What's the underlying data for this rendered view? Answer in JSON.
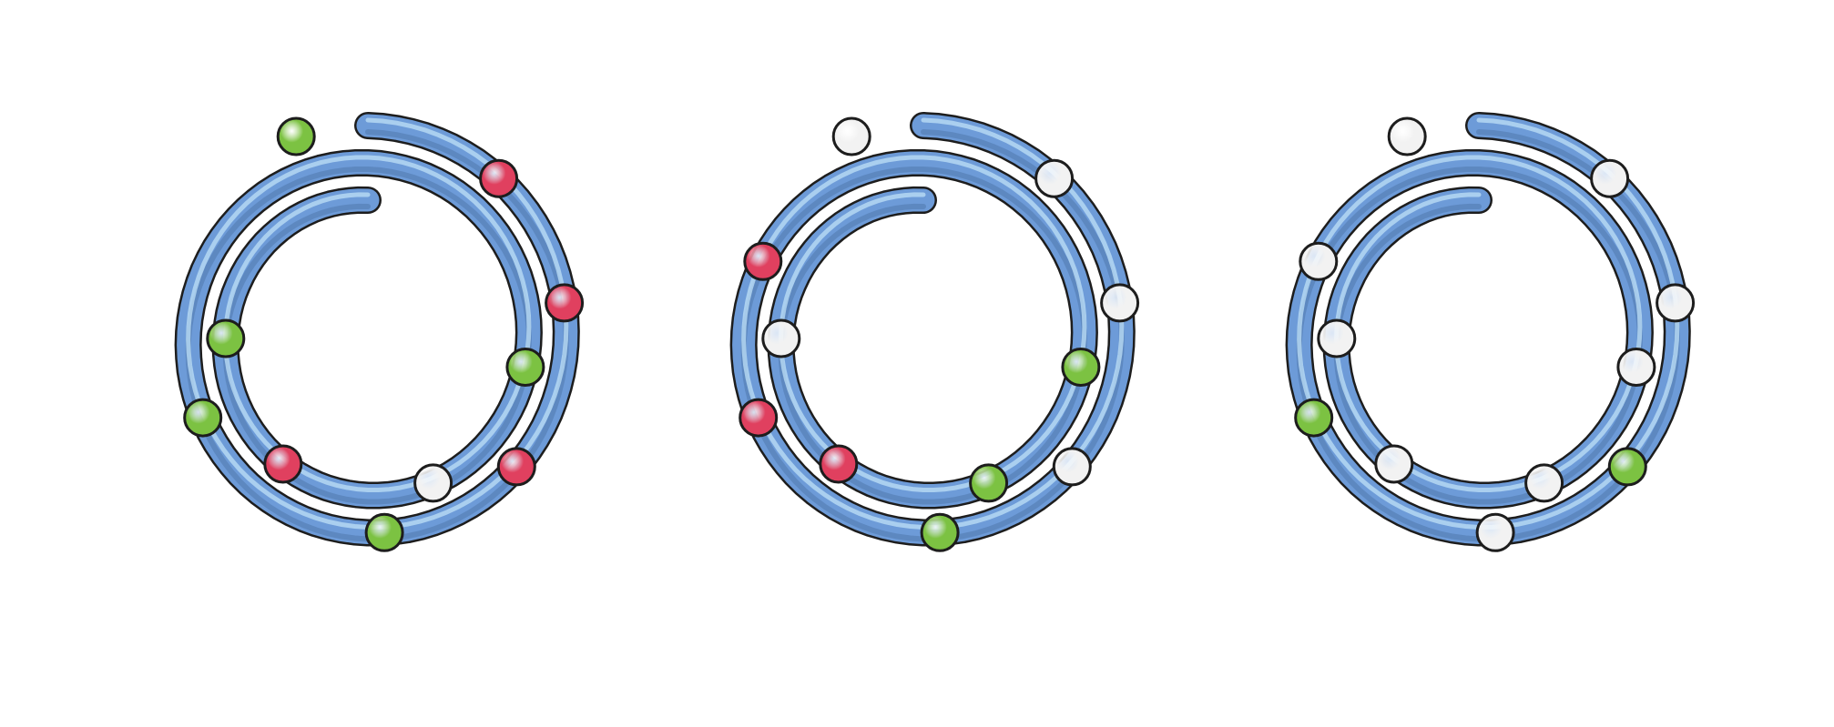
{
  "colors": {
    "background": "#ffffff",
    "tube_fill": "#6d9bd8",
    "tube_highlight": "#bfe0f7",
    "tube_shadow": "#3f6596",
    "outline": "#1d1d1d",
    "bead_green": "#7cc242",
    "bead_red": "#e0405f",
    "bead_white": "#f2f2f2"
  },
  "diagram": {
    "coils": [
      {
        "beads": [
          "green",
          "red",
          "green",
          "red",
          "red",
          "green",
          "green",
          "red",
          "white",
          "green"
        ]
      },
      {
        "beads": [
          "white",
          "white",
          "white",
          "white",
          "white",
          "green",
          "red",
          "red",
          "green",
          "green",
          "red"
        ]
      },
      {
        "beads": [
          "white",
          "white",
          "white",
          "white",
          "green",
          "white",
          "green",
          "white",
          "white",
          "white",
          "white"
        ]
      }
    ]
  }
}
